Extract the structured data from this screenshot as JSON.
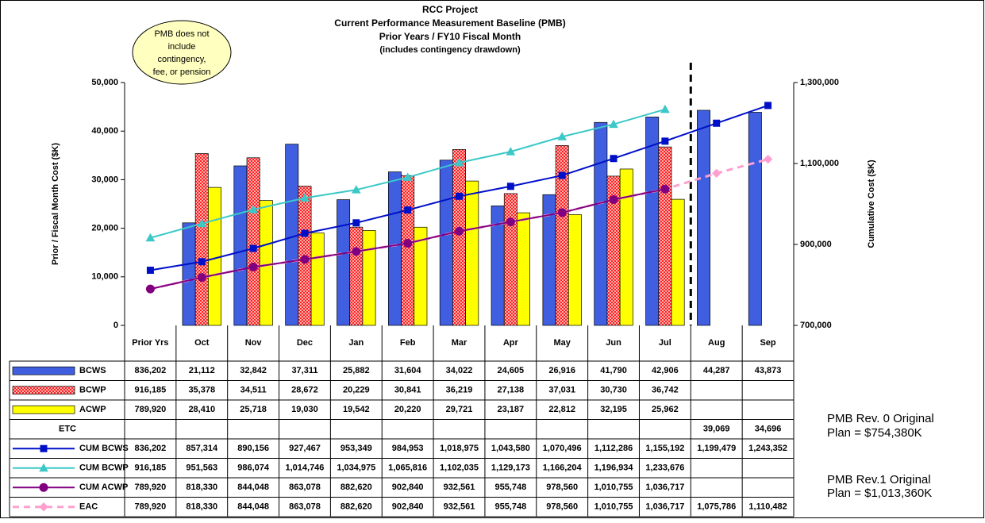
{
  "chart_data": {
    "type": "bar",
    "title": [
      "RCC Project",
      "Current Performance Measurement Baseline (PMB)",
      "Prior Years / FY10 Fiscal Month",
      "(includes contingency drawdown)"
    ],
    "y_label": "Prior / Fiscal Month Cost ($K)",
    "y2_label": "Cumulative Cost ($K)",
    "callout": [
      "PMB does not",
      "include",
      "contingency,",
      "fee, or pension"
    ],
    "notes": [
      [
        "PMB Rev. 0 Original",
        "Plan = $754,380K"
      ],
      [
        "PMB Rev.1 Original",
        "Plan = $1,013,360K"
      ]
    ],
    "categories": [
      "Prior Yrs",
      "Oct",
      "Nov",
      "Dec",
      "Jan",
      "Feb",
      "Mar",
      "Apr",
      "May",
      "Jun",
      "Jul",
      "Aug",
      "Sep"
    ],
    "ylim": [
      0,
      50000
    ],
    "yticks": [
      0,
      {
        "value": 10000,
        "label": "10,000"
      },
      {
        "value": 20000,
        "label": "20,000"
      },
      {
        "value": 30000,
        "label": "30,000"
      },
      {
        "value": 40000,
        "label": "40,000"
      },
      {
        "value": 50000,
        "label": "50,000"
      }
    ],
    "y2lim": [
      700000,
      1300000
    ],
    "y2ticks": [
      {
        "value": 700000,
        "label": "700,000"
      },
      {
        "value": 900000,
        "label": "900,000"
      },
      {
        "value": 1100000,
        "label": "1,100,000"
      },
      {
        "value": 1300000,
        "label": "1,300,000"
      }
    ],
    "series": [
      {
        "name": "BCWS",
        "color": "#3f5fe0",
        "values": [
          836202,
          21112,
          32842,
          37311,
          25882,
          31604,
          34022,
          24605,
          26916,
          41790,
          42906,
          44287,
          43873
        ],
        "value_labels": [
          "836,202",
          "21,112",
          "32,842",
          "37,311",
          "25,882",
          "31,604",
          "34,022",
          "24,605",
          "26,916",
          "41,790",
          "42,906",
          "44,287",
          "43,873"
        ]
      },
      {
        "name": "BCWP",
        "color": "#ff2020",
        "pattern": "checker",
        "values": [
          916185,
          35378,
          34511,
          28672,
          20229,
          30841,
          36219,
          27138,
          37031,
          30730,
          36742,
          null,
          null
        ],
        "value_labels": [
          "916,185",
          "35,378",
          "34,511",
          "28,672",
          "20,229",
          "30,841",
          "36,219",
          "27,138",
          "37,031",
          "30,730",
          "36,742",
          null,
          null
        ]
      },
      {
        "name": "ACWP",
        "color": "#ffff00",
        "values": [
          789920,
          28410,
          25718,
          19030,
          19542,
          20220,
          29721,
          23187,
          22812,
          32195,
          25962,
          null,
          null
        ],
        "value_labels": [
          "789,920",
          "28,410",
          "25,718",
          "19,030",
          "19,542",
          "20,220",
          "29,721",
          "23,187",
          "22,812",
          "32,195",
          "25,962",
          null,
          null
        ]
      },
      {
        "name": "ETC",
        "values": [
          null,
          null,
          null,
          null,
          null,
          null,
          null,
          null,
          null,
          null,
          null,
          39069,
          34696
        ],
        "value_labels": [
          null,
          null,
          null,
          null,
          null,
          null,
          null,
          null,
          null,
          null,
          null,
          "39,069",
          "34,696"
        ]
      },
      {
        "name": "CUM BCWS",
        "color": "#0010c8",
        "axis": "y2",
        "marker": "square",
        "values": [
          836202,
          857314,
          890156,
          927467,
          953349,
          984953,
          1018975,
          1043580,
          1070496,
          1112286,
          1155192,
          1199479,
          1243352
        ],
        "value_labels": [
          "836,202",
          "857,314",
          "890,156",
          "927,467",
          "953,349",
          "984,953",
          "1,018,975",
          "1,043,580",
          "1,070,496",
          "1,112,286",
          "1,155,192",
          "1,199,479",
          "1,243,352"
        ]
      },
      {
        "name": "CUM BCWP",
        "color": "#3cc8c8",
        "axis": "y2",
        "marker": "triangle",
        "values": [
          916185,
          951563,
          986074,
          1014746,
          1034975,
          1065816,
          1102035,
          1129173,
          1166204,
          1196934,
          1233676,
          null,
          null
        ],
        "value_labels": [
          "916,185",
          "951,563",
          "986,074",
          "1,014,746",
          "1,034,975",
          "1,065,816",
          "1,102,035",
          "1,129,173",
          "1,166,204",
          "1,196,934",
          "1,233,676",
          null,
          null
        ]
      },
      {
        "name": "CUM ACWP",
        "color": "#800080",
        "axis": "y2",
        "marker": "circle",
        "values": [
          789920,
          818330,
          844048,
          863078,
          882620,
          902840,
          932561,
          955748,
          978560,
          1010755,
          1036717,
          null,
          null
        ],
        "value_labels": [
          "789,920",
          "818,330",
          "844,048",
          "863,078",
          "882,620",
          "902,840",
          "932,561",
          "955,748",
          "978,560",
          "1,010,755",
          "1,036,717",
          null,
          null
        ]
      },
      {
        "name": "EAC",
        "color": "#ff9fd0",
        "axis": "y2",
        "marker": "diamond",
        "dashed": true,
        "values": [
          789920,
          818330,
          844048,
          863078,
          882620,
          902840,
          932561,
          955748,
          978560,
          1010755,
          1036717,
          1075786,
          1110482
        ],
        "value_labels": [
          "789,920",
          "818,330",
          "844,048",
          "863,078",
          "882,620",
          "902,840",
          "932,561",
          "955,748",
          "978,560",
          "1,010,755",
          "1,036,717",
          "1,075,786",
          "1,110,482"
        ]
      }
    ]
  }
}
